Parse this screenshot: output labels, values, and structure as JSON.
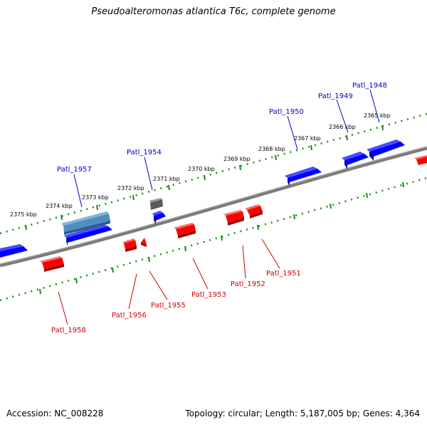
{
  "title": "Pseudoalteromonas atlantica T6c, complete genome",
  "footer": {
    "accession": "Accession: NC_008228",
    "topology": "Topology: circular; Length: 5,187,005 bp; Genes: 4,364"
  },
  "colors": {
    "forward_gene": "#0000ff",
    "reverse_gene": "#ff0000",
    "rna_gene": "#4f8fc0",
    "other_gene": "#666666",
    "backbone": "#808080",
    "tick": "#1a8a1a"
  },
  "ruler_labels": [
    "2365 kbp",
    "2366 kbp",
    "2367 kbp",
    "2368 kbp",
    "2369 kbp",
    "2370 kbp",
    "2371 kbp",
    "2372 kbp",
    "2373 kbp",
    "2374 kbp",
    "2375 kbp"
  ],
  "gene_labels_top": [
    "Patl_1948",
    "Patl_1949",
    "Patl_1950",
    "Patl_1954",
    "Patl_1957"
  ],
  "gene_labels_bottom": [
    "Patl_1951",
    "Patl_1952",
    "Patl_1953",
    "Patl_1955",
    "Patl_1956",
    "Patl_1958"
  ]
}
